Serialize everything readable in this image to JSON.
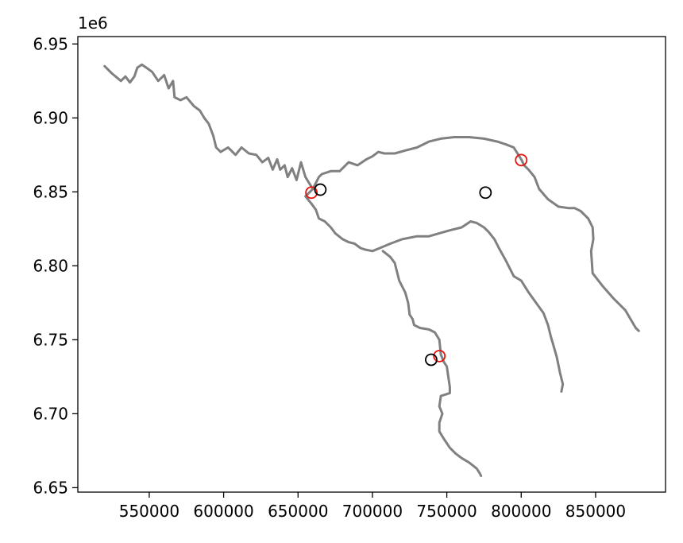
{
  "chart_data": {
    "type": "scatter",
    "title": "",
    "xlabel": "",
    "ylabel": "",
    "xlim": [
      502000,
      897000
    ],
    "ylim": [
      6647000,
      6955000
    ],
    "y_offset_label": "1e6",
    "x_ticks": [
      550000,
      600000,
      650000,
      700000,
      750000,
      800000,
      850000
    ],
    "x_tick_labels": [
      "550000",
      "600000",
      "650000",
      "700000",
      "750000",
      "800000",
      "850000"
    ],
    "y_ticks": [
      6650000,
      6700000,
      6750000,
      6800000,
      6850000,
      6900000,
      6950000
    ],
    "y_tick_labels": [
      "6.65",
      "6.70",
      "6.75",
      "6.80",
      "6.85",
      "6.90",
      "6.95"
    ],
    "grid": false,
    "colors": {
      "river": "#808080",
      "red_points": "#e8120c",
      "black_points": "#000000",
      "axes": "#000000"
    },
    "lines": [
      {
        "x": [
          520000,
          525000,
          531000,
          534000,
          537000,
          540000,
          542000,
          545000,
          548000,
          552000,
          556000,
          560000,
          563000,
          566000,
          567000,
          571000,
          575000,
          580000,
          584000,
          587000,
          590000,
          593000,
          595000,
          598000,
          603000,
          608000,
          612000,
          617000,
          622000,
          626000,
          630000,
          633000,
          636000,
          638000,
          641000,
          643000,
          646000,
          649000,
          652000,
          655000,
          658000,
          660000
        ],
        "y": [
          6935000,
          6930000,
          6925000,
          6928000,
          6924000,
          6928000,
          6934000,
          6936000,
          6934000,
          6931000,
          6925000,
          6929000,
          6920000,
          6925000,
          6914000,
          6912000,
          6914000,
          6908000,
          6905000,
          6900000,
          6896000,
          6888000,
          6880000,
          6877000,
          6880000,
          6875000,
          6880000,
          6876000,
          6875000,
          6870000,
          6873000,
          6865000,
          6872000,
          6865000,
          6868000,
          6860000,
          6866000,
          6858000,
          6870000,
          6860000,
          6855000,
          6852000
        ]
      },
      {
        "x": [
          660000,
          662000,
          664000,
          666000,
          672000,
          678000,
          684000,
          690000,
          696000,
          700000,
          704000,
          708000,
          715000,
          722000,
          730000,
          738000,
          746000,
          755000,
          765000,
          775000,
          784000,
          790000,
          795000,
          800000,
          802000,
          805000,
          809000,
          812000,
          818000,
          825000,
          832000,
          836000,
          840000,
          845000,
          848000,
          848500,
          847000,
          848000,
          855000,
          862000,
          870000,
          877000,
          879000
        ],
        "y": [
          6852000,
          6856000,
          6860000,
          6862000,
          6864000,
          6864000,
          6870000,
          6868000,
          6872000,
          6874000,
          6877000,
          6876000,
          6876000,
          6878000,
          6880000,
          6884000,
          6886000,
          6887000,
          6887000,
          6886000,
          6884000,
          6882000,
          6880000,
          6872000,
          6868000,
          6865000,
          6860000,
          6852000,
          6845000,
          6840000,
          6839000,
          6839000,
          6837000,
          6832000,
          6826000,
          6818000,
          6810000,
          6795000,
          6786000,
          6778000,
          6770000,
          6758000,
          6756000
        ]
      },
      {
        "x": [
          660000,
          658000,
          655000,
          659000,
          662000,
          664000,
          668000,
          672000,
          675000,
          680000,
          684000,
          688000,
          692000,
          695000,
          700000,
          705000,
          712000,
          720000,
          730000,
          738000,
          745000,
          752000,
          760000,
          766000,
          770000,
          775000,
          778000,
          782000,
          785000,
          790000,
          795000,
          800000,
          805000,
          810000,
          815000,
          818000,
          820000,
          822000,
          824000,
          826000,
          828000,
          827000
        ],
        "y": [
          6852000,
          6850000,
          6847000,
          6842000,
          6838000,
          6832000,
          6830000,
          6826000,
          6822000,
          6818000,
          6816000,
          6815000,
          6812000,
          6811000,
          6810000,
          6812000,
          6815000,
          6818000,
          6820000,
          6820000,
          6822000,
          6824000,
          6826000,
          6830000,
          6829000,
          6826000,
          6823000,
          6818000,
          6812000,
          6803000,
          6793000,
          6790000,
          6782000,
          6775000,
          6768000,
          6760000,
          6752000,
          6745000,
          6738000,
          6728000,
          6720000,
          6715000
        ]
      },
      {
        "x": [
          707000,
          712000,
          715000,
          718000,
          722000,
          724000,
          725000,
          727000,
          728000,
          732000,
          738000,
          742000,
          745000,
          746000,
          748000,
          750000,
          751000,
          752000,
          752000,
          746000,
          745000,
          747000,
          745000,
          745000,
          748000,
          752000,
          756000,
          760000,
          765000,
          770000,
          772000,
          773000
        ],
        "y": [
          6810000,
          6806000,
          6802000,
          6790000,
          6782000,
          6775000,
          6767000,
          6764000,
          6760000,
          6758000,
          6757000,
          6755000,
          6750000,
          6740000,
          6735000,
          6732000,
          6725000,
          6718000,
          6714000,
          6712000,
          6705000,
          6700000,
          6694000,
          6688000,
          6683000,
          6677000,
          6673000,
          6670000,
          6667000,
          6663000,
          6660000,
          6658000
        ]
      }
    ],
    "points": [
      {
        "x": 659000,
        "y": 6849500,
        "color": "red"
      },
      {
        "x": 665000,
        "y": 6851500,
        "color": "black"
      },
      {
        "x": 776000,
        "y": 6849500,
        "color": "black"
      },
      {
        "x": 800000,
        "y": 6871500,
        "color": "red"
      },
      {
        "x": 745000,
        "y": 6739000,
        "color": "red"
      },
      {
        "x": 739500,
        "y": 6736500,
        "color": "black"
      }
    ]
  }
}
